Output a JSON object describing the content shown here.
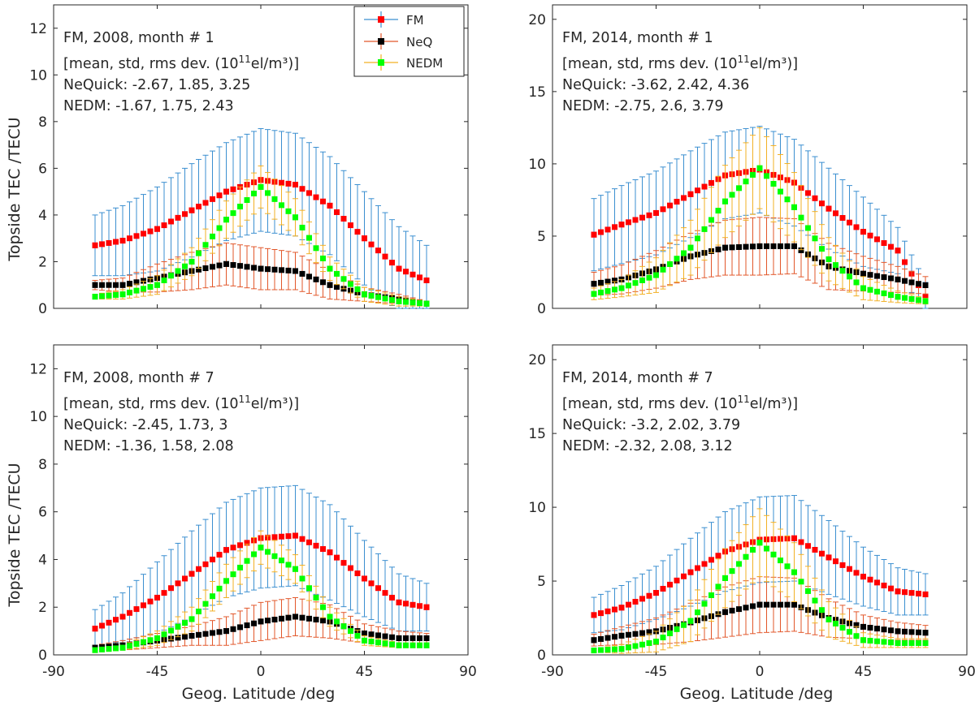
{
  "figure": {
    "x_axis_label": "Geog. Latitude /deg",
    "y_axis_label": "Topside TEC /TECU"
  },
  "legend": [
    {
      "label": "FM",
      "color": "#ff0000",
      "err_color": "#3b8fd0"
    },
    {
      "label": "NeQ",
      "color": "#000000",
      "err_color": "#e2572a"
    },
    {
      "label": "NEDM",
      "color": "#00ff00",
      "err_color": "#f2b025"
    }
  ],
  "chart_data": [
    {
      "type": "line",
      "title": "FM, 2008, month # 1",
      "annotation": [
        "FM, 2008, month # 1",
        "[mean, std, rms dev. (10",
        "NeQuick: -2.67, 1.85, 3.25",
        "NEDM: -1.67, 1.75, 2.43"
      ],
      "units_exponent": "11",
      "units_suffix": "el/m³)]",
      "xlim": [
        -90,
        90
      ],
      "ylim": [
        0,
        13
      ],
      "xticks": [
        "-90",
        "-45",
        "0",
        "45",
        "90"
      ],
      "xtick_values": [
        -90,
        -45,
        0,
        45,
        90
      ],
      "yticks": [
        "0",
        "2",
        "4",
        "6",
        "8",
        "10",
        "12"
      ],
      "ytick_values": [
        0,
        2,
        4,
        6,
        8,
        10,
        12
      ],
      "x": [
        -72,
        -60,
        -45,
        -30,
        -15,
        0,
        15,
        30,
        45,
        60,
        72
      ],
      "series": [
        {
          "name": "FM",
          "values": [
            2.7,
            2.9,
            3.4,
            4.2,
            5.0,
            5.5,
            5.3,
            4.4,
            3.0,
            1.7,
            1.2
          ],
          "err": [
            1.3,
            1.5,
            1.8,
            2.0,
            2.1,
            2.2,
            2.2,
            2.1,
            2.0,
            1.8,
            1.5
          ]
        },
        {
          "name": "NeQ",
          "values": [
            1.0,
            1.0,
            1.3,
            1.6,
            1.9,
            1.7,
            1.6,
            1.0,
            0.6,
            0.4,
            0.2
          ],
          "err": [
            0.2,
            0.3,
            0.6,
            0.8,
            0.9,
            0.9,
            0.8,
            0.6,
            0.3,
            0.2,
            0.1
          ]
        },
        {
          "name": "NEDM",
          "values": [
            0.5,
            0.6,
            1.0,
            2.0,
            3.8,
            5.2,
            3.9,
            1.7,
            0.6,
            0.3,
            0.2
          ],
          "err": [
            0.1,
            0.2,
            0.4,
            0.6,
            0.8,
            0.9,
            0.8,
            0.5,
            0.3,
            0.2,
            0.1
          ]
        }
      ]
    },
    {
      "type": "line",
      "title": "FM, 2014, month # 1",
      "annotation": [
        "FM, 2014, month # 1",
        "[mean, std, rms dev. (10",
        "NeQuick: -3.62, 2.42, 4.36",
        "NEDM: -2.75, 2.6, 3.79"
      ],
      "units_exponent": "11",
      "units_suffix": "el/m³)]",
      "xlim": [
        -90,
        90
      ],
      "ylim": [
        0,
        21
      ],
      "xticks": [
        "-90",
        "-45",
        "0",
        "45",
        "90"
      ],
      "xtick_values": [
        -90,
        -45,
        0,
        45,
        90
      ],
      "yticks": [
        "0",
        "5",
        "10",
        "15",
        "20"
      ],
      "ytick_values": [
        0,
        5,
        10,
        15,
        20
      ],
      "x": [
        -72,
        -60,
        -45,
        -30,
        -15,
        0,
        15,
        30,
        45,
        60,
        72
      ],
      "series": [
        {
          "name": "FM",
          "values": [
            5.1,
            5.8,
            6.6,
            7.9,
            9.2,
            9.6,
            8.7,
            6.9,
            5.3,
            4.0,
            0.8
          ],
          "err": [
            2.5,
            2.7,
            2.9,
            3.0,
            3.0,
            3.0,
            3.0,
            2.8,
            2.4,
            1.6,
            1.0
          ]
        },
        {
          "name": "NeQ",
          "values": [
            1.7,
            2.0,
            2.7,
            3.6,
            4.2,
            4.3,
            4.3,
            2.9,
            2.4,
            2.0,
            1.6
          ],
          "err": [
            0.8,
            1.0,
            1.3,
            1.6,
            1.9,
            2.0,
            1.9,
            1.6,
            1.2,
            0.9,
            0.6
          ]
        },
        {
          "name": "NEDM",
          "values": [
            1.0,
            1.4,
            2.3,
            4.2,
            7.4,
            9.7,
            7.0,
            3.4,
            1.4,
            0.8,
            0.5
          ],
          "err": [
            0.4,
            0.6,
            1.2,
            1.9,
            2.5,
            2.8,
            2.4,
            1.5,
            0.8,
            0.4,
            0.2
          ]
        }
      ]
    },
    {
      "type": "line",
      "title": "FM, 2008, month # 7",
      "annotation": [
        "FM, 2008, month # 7",
        "[mean, std, rms dev. (10",
        "NeQuick: -2.45, 1.73, 3",
        "NEDM: -1.36, 1.58, 2.08"
      ],
      "units_exponent": "11",
      "units_suffix": "el/m³)]",
      "xlim": [
        -90,
        90
      ],
      "ylim": [
        0,
        13
      ],
      "xticks": [
        "-90",
        "-45",
        "0",
        "45",
        "90"
      ],
      "xtick_values": [
        -90,
        -45,
        0,
        45,
        90
      ],
      "yticks": [
        "0",
        "2",
        "4",
        "6",
        "8",
        "10",
        "12"
      ],
      "ytick_values": [
        0,
        2,
        4,
        6,
        8,
        10,
        12
      ],
      "x": [
        -72,
        -60,
        -45,
        -30,
        -15,
        0,
        15,
        30,
        45,
        60,
        72
      ],
      "series": [
        {
          "name": "FM",
          "values": [
            1.1,
            1.6,
            2.4,
            3.4,
            4.4,
            4.9,
            5.0,
            4.3,
            3.2,
            2.2,
            2.0
          ],
          "err": [
            0.8,
            1.0,
            1.5,
            1.8,
            2.0,
            2.1,
            2.1,
            2.0,
            1.6,
            1.2,
            1.0
          ]
        },
        {
          "name": "NeQ",
          "values": [
            0.3,
            0.4,
            0.6,
            0.8,
            1.0,
            1.4,
            1.6,
            1.4,
            0.9,
            0.7,
            0.7
          ],
          "err": [
            0.1,
            0.2,
            0.3,
            0.4,
            0.6,
            0.8,
            0.8,
            0.7,
            0.4,
            0.3,
            0.2
          ]
        },
        {
          "name": "NEDM",
          "values": [
            0.2,
            0.3,
            0.7,
            1.5,
            3.1,
            4.5,
            3.6,
            1.6,
            0.6,
            0.4,
            0.4
          ],
          "err": [
            0.1,
            0.1,
            0.3,
            0.5,
            0.7,
            0.7,
            0.6,
            0.4,
            0.2,
            0.1,
            0.1
          ]
        }
      ]
    },
    {
      "type": "line",
      "title": "FM, 2014, month # 7",
      "annotation": [
        "FM, 2014, month # 7",
        "[mean, std, rms dev. (10",
        "NeQuick: -3.2, 2.02, 3.79",
        "NEDM: -2.32, 2.08, 3.12"
      ],
      "units_exponent": "11",
      "units_suffix": "el/m³)]",
      "xlim": [
        -90,
        90
      ],
      "ylim": [
        0,
        21
      ],
      "xticks": [
        "-90",
        "-45",
        "0",
        "45",
        "90"
      ],
      "xtick_values": [
        -90,
        -45,
        0,
        45,
        90
      ],
      "yticks": [
        "0",
        "5",
        "10",
        "15",
        "20"
      ],
      "ytick_values": [
        0,
        5,
        10,
        15,
        20
      ],
      "x": [
        -72,
        -60,
        -45,
        -30,
        -15,
        0,
        15,
        30,
        45,
        60,
        72
      ],
      "series": [
        {
          "name": "FM",
          "values": [
            2.7,
            3.2,
            4.2,
            5.6,
            7.0,
            7.8,
            7.9,
            6.6,
            5.3,
            4.3,
            4.1
          ],
          "err": [
            1.2,
            1.5,
            1.8,
            2.3,
            2.7,
            2.9,
            2.9,
            2.5,
            2.0,
            1.6,
            1.4
          ]
        },
        {
          "name": "NeQ",
          "values": [
            1.0,
            1.3,
            1.6,
            2.2,
            2.9,
            3.4,
            3.4,
            2.5,
            1.9,
            1.6,
            1.5
          ],
          "err": [
            0.4,
            0.6,
            0.9,
            1.3,
            1.7,
            1.9,
            1.8,
            1.3,
            0.8,
            0.6,
            0.5
          ]
        },
        {
          "name": "NEDM",
          "values": [
            0.3,
            0.4,
            0.9,
            2.3,
            5.2,
            7.6,
            5.6,
            2.4,
            1.0,
            0.8,
            0.8
          ],
          "err": [
            0.1,
            0.3,
            0.7,
            1.4,
            2.0,
            2.3,
            2.0,
            1.2,
            0.5,
            0.3,
            0.3
          ]
        }
      ]
    }
  ]
}
